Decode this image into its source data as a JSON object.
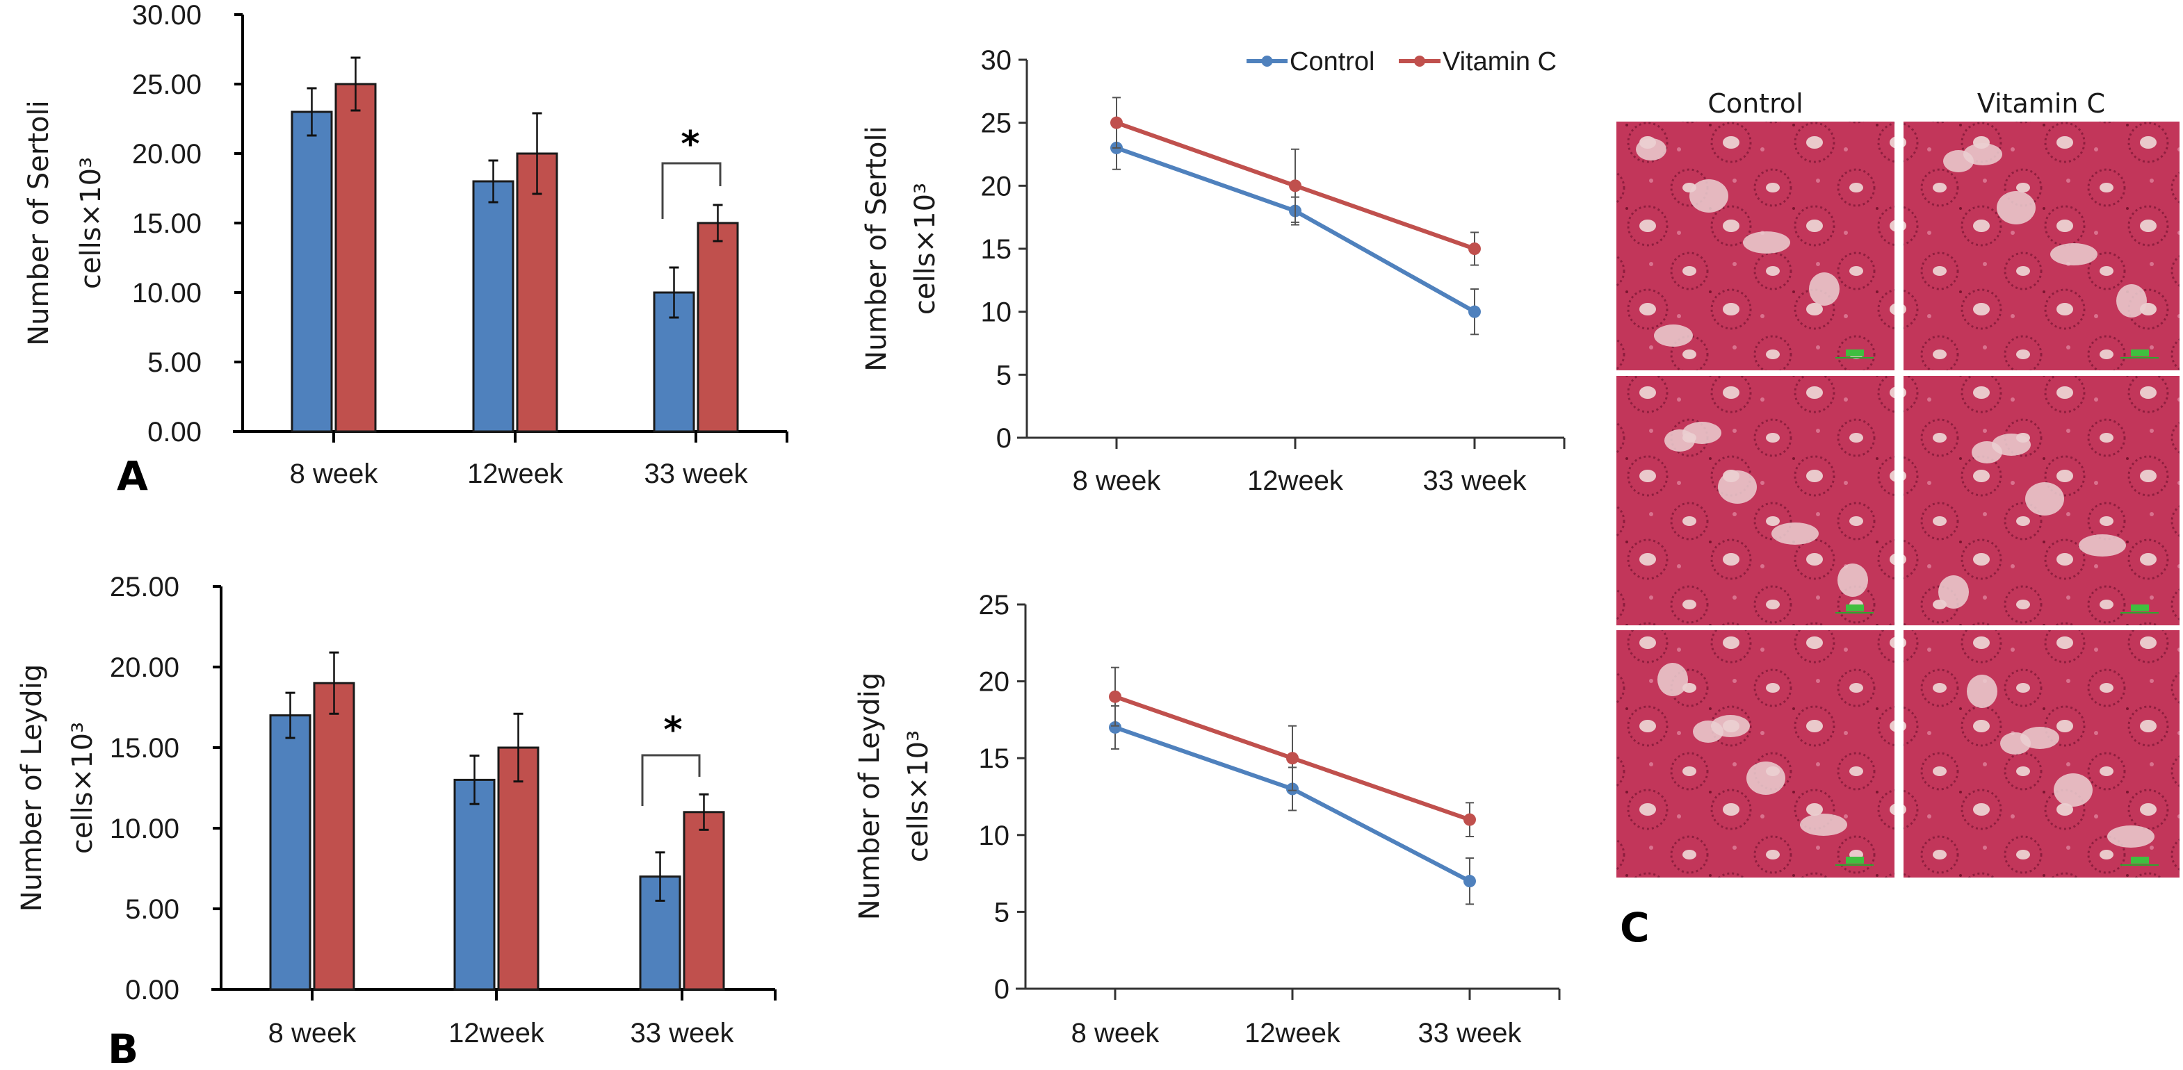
{
  "figure": {
    "colors": {
      "control": "#4F81BD",
      "vitamin_c": "#C0504D",
      "axis": "#000000",
      "tissue": "#C2365A",
      "lumen": "#E9C9C9"
    },
    "panel_labels": {
      "a": "A",
      "b": "B",
      "c": "C"
    },
    "histology": {
      "columns": [
        "Control",
        "Vitamin C"
      ],
      "rows": 3,
      "description": "H&E stained testis sections (seminiferous tubules) with green scale bars"
    }
  },
  "chart_data": [
    {
      "id": "sertoli_bar",
      "type": "bar",
      "panel": "A",
      "title": "",
      "xlabel": "",
      "ylabel": "Number of Sertoli cells×10³",
      "ylabel_lines": [
        "Number of Sertoli",
        "cells×10³"
      ],
      "categories": [
        "8 week",
        "12week",
        "33 week"
      ],
      "ylim": [
        0,
        30
      ],
      "yticks": [
        0,
        5,
        10,
        15,
        20,
        25,
        30
      ],
      "ytick_labels": [
        "0.00",
        "5.00",
        "10.00",
        "15.00",
        "20.00",
        "25.00",
        "30.00"
      ],
      "grid": false,
      "series": [
        {
          "name": "Control",
          "color": "#4F81BD",
          "values": [
            23,
            18,
            10
          ],
          "errors": [
            1.7,
            1.5,
            1.8
          ]
        },
        {
          "name": "Vitamin C",
          "color": "#C0504D",
          "values": [
            25,
            20,
            15
          ],
          "errors": [
            1.9,
            2.9,
            1.3
          ]
        }
      ],
      "annotations": [
        {
          "category": "33 week",
          "text": "*",
          "type": "significance-bracket"
        }
      ]
    },
    {
      "id": "sertoli_line",
      "type": "line",
      "panel": "A",
      "title": "",
      "xlabel": "",
      "ylabel": "Number of Sertoli cells×10³",
      "ylabel_lines": [
        "Number of Sertoli",
        "cells×10³"
      ],
      "categories": [
        "8 week",
        "12week",
        "33 week"
      ],
      "ylim": [
        0,
        30
      ],
      "yticks": [
        0,
        5,
        10,
        15,
        20,
        25,
        30
      ],
      "ytick_labels": [
        "0",
        "5",
        "10",
        "15",
        "20",
        "25",
        "30"
      ],
      "grid": false,
      "legend": {
        "placement": "top-right",
        "entries": [
          "Control",
          "Vitamin C"
        ]
      },
      "series": [
        {
          "name": "Control",
          "color": "#4F81BD",
          "values": [
            23,
            18,
            10
          ],
          "errors": [
            1.7,
            1.1,
            1.8
          ]
        },
        {
          "name": "Vitamin C",
          "color": "#C0504D",
          "values": [
            25,
            20,
            15
          ],
          "errors": [
            2.0,
            2.9,
            1.3
          ]
        }
      ]
    },
    {
      "id": "leydig_bar",
      "type": "bar",
      "panel": "B",
      "title": "",
      "xlabel": "",
      "ylabel": "Number of Leydig cells×10³",
      "ylabel_lines": [
        "Number of Leydig",
        "cells×10³"
      ],
      "categories": [
        "8 week",
        "12week",
        "33 week"
      ],
      "ylim": [
        0,
        25
      ],
      "yticks": [
        0,
        5,
        10,
        15,
        20,
        25
      ],
      "ytick_labels": [
        "0.00",
        "5.00",
        "10.00",
        "15.00",
        "20.00",
        "25.00"
      ],
      "grid": false,
      "series": [
        {
          "name": "Control",
          "color": "#4F81BD",
          "values": [
            17,
            13,
            7
          ],
          "errors": [
            1.4,
            1.5,
            1.5
          ]
        },
        {
          "name": "Vitamin C",
          "color": "#C0504D",
          "values": [
            19,
            15,
            11
          ],
          "errors": [
            1.9,
            2.1,
            1.1
          ]
        }
      ],
      "annotations": [
        {
          "category": "33 week",
          "text": "*",
          "type": "significance-bracket"
        }
      ]
    },
    {
      "id": "leydig_line",
      "type": "line",
      "panel": "B",
      "title": "",
      "xlabel": "",
      "ylabel": "Number of Leydig cells×10³",
      "ylabel_lines": [
        "Number of Leydig",
        "cells×10³"
      ],
      "categories": [
        "8 week",
        "12week",
        "33 week"
      ],
      "ylim": [
        0,
        25
      ],
      "yticks": [
        0,
        5,
        10,
        15,
        20,
        25
      ],
      "ytick_labels": [
        "0",
        "5",
        "10",
        "15",
        "20",
        "25"
      ],
      "grid": false,
      "series": [
        {
          "name": "Control",
          "color": "#4F81BD",
          "values": [
            17,
            13,
            7
          ],
          "errors": [
            1.4,
            1.4,
            1.5
          ]
        },
        {
          "name": "Vitamin C",
          "color": "#C0504D",
          "values": [
            19,
            15,
            11
          ],
          "errors": [
            1.9,
            2.1,
            1.1
          ]
        }
      ]
    }
  ]
}
